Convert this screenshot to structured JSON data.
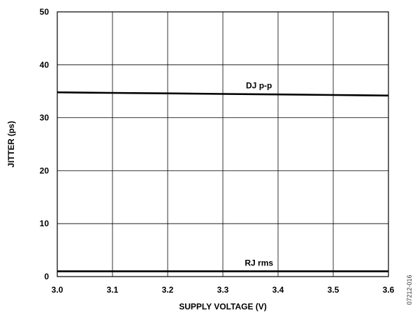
{
  "chart_data": {
    "type": "line",
    "title": "",
    "xlabel": "SUPPLY VOLTAGE (V)",
    "ylabel": "JITTER (ps)",
    "xlim": [
      3.0,
      3.6
    ],
    "ylim": [
      0,
      50
    ],
    "x_ticks": [
      "3.0",
      "3.1",
      "3.2",
      "3.3",
      "3.4",
      "3.5",
      "3.6"
    ],
    "y_ticks": [
      "0",
      "10",
      "20",
      "30",
      "40",
      "50"
    ],
    "grid": true,
    "legend": "none",
    "series": [
      {
        "name": "DJ p-p",
        "x": [
          3.0,
          3.1,
          3.2,
          3.3,
          3.4,
          3.5,
          3.6
        ],
        "values": [
          34.8,
          34.7,
          34.6,
          34.5,
          34.4,
          34.3,
          34.2
        ],
        "color": "#000000"
      },
      {
        "name": "RJ rms",
        "x": [
          3.0,
          3.1,
          3.2,
          3.3,
          3.4,
          3.5,
          3.6
        ],
        "values": [
          1.0,
          1.0,
          1.0,
          1.0,
          1.0,
          1.0,
          1.0
        ],
        "color": "#000000"
      }
    ]
  },
  "figure_id": "07212-016"
}
